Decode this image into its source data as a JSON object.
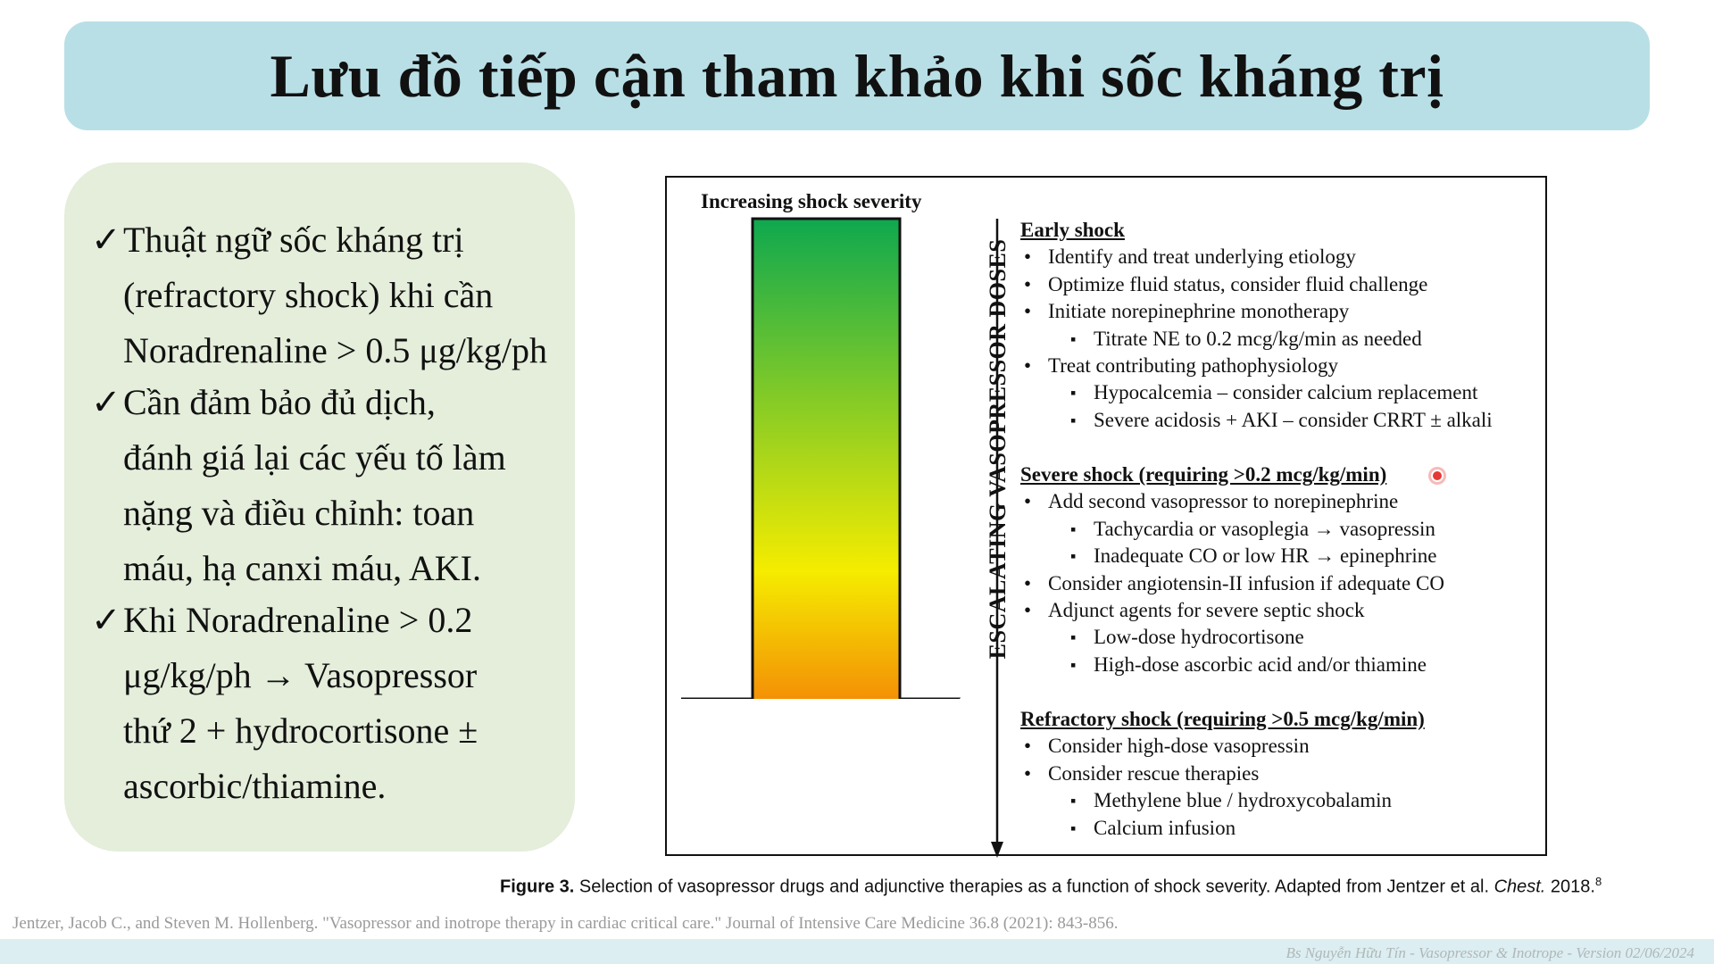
{
  "title": "Lưu đồ tiếp cận tham khảo khi sốc kháng trị",
  "left_panel": {
    "check_glyph": "✓",
    "bullets": [
      {
        "lines": [
          "Thuật ngữ sốc kháng trị",
          "(refractory shock) khi cần",
          "Noradrenaline > 0.5 μg/kg/ph"
        ]
      },
      {
        "lines": [
          "Cần đảm bảo đủ dịch,",
          "đánh giá lại các yếu tố làm",
          "nặng và điều chỉnh: toan",
          "máu, hạ canxi máu, AKI."
        ]
      },
      {
        "lines": [
          " Khi Noradrenaline > 0.2",
          "μg/kg/ph → Vasopressor",
          "thứ 2 + hydrocortisone ±",
          "ascorbic/thiamine."
        ]
      }
    ]
  },
  "figure": {
    "severity_label": "Increasing shock severity",
    "axis_label": "ESCALATING VASOPRESSOR DOSES",
    "gradient_colors": [
      "#0ea84f",
      "#f5ec00",
      "#f21e0d"
    ],
    "bullet_l1": "•",
    "bullet_l2": "▪",
    "sections": [
      {
        "heading": "Early shock",
        "items": [
          {
            "level": 1,
            "text": "Identify and treat underlying etiology"
          },
          {
            "level": 1,
            "text": "Optimize fluid status, consider fluid challenge"
          },
          {
            "level": 1,
            "text": "Initiate norepinephrine monotherapy"
          },
          {
            "level": 2,
            "text": "Titrate NE to 0.2 mcg/kg/min as needed"
          },
          {
            "level": 1,
            "text": "Treat contributing pathophysiology"
          },
          {
            "level": 2,
            "text": "Hypocalcemia – consider calcium replacement"
          },
          {
            "level": 2,
            "text": "Severe acidosis + AKI – consider CRRT ± alkali"
          }
        ]
      },
      {
        "heading": "Severe shock (requiring >0.2 mcg/kg/min)",
        "items": [
          {
            "level": 1,
            "text": "Add second vasopressor to norepinephrine"
          },
          {
            "level": 2,
            "text": "Tachycardia or vasoplegia → vasopressin"
          },
          {
            "level": 2,
            "text": "Inadequate CO or low HR → epinephrine"
          },
          {
            "level": 1,
            "text": "Consider angiotensin-II infusion if adequate CO"
          },
          {
            "level": 1,
            "text": "Adjunct agents for severe septic shock"
          },
          {
            "level": 2,
            "text": "Low-dose hydrocortisone"
          },
          {
            "level": 2,
            "text": "High-dose ascorbic acid and/or thiamine"
          }
        ]
      },
      {
        "heading": "Refractory shock (requiring >0.5 mcg/kg/min)",
        "items": [
          {
            "level": 1,
            "text": "Consider high-dose vasopressin"
          },
          {
            "level": 1,
            "text": "Consider rescue therapies"
          },
          {
            "level": 2,
            "text": "Methylene blue / hydroxycobalamin"
          },
          {
            "level": 2,
            "text": "Calcium infusion"
          }
        ]
      }
    ],
    "caption": {
      "label": "Figure 3.",
      "text": " Selection of vasopressor drugs and adjunctive therapies as a function of shock severity. Adapted from Jentzer et al. ",
      "journal": "Chest.",
      "year": " 2018.",
      "ref_number": "8"
    }
  },
  "reference": "Jentzer, Jacob C., and Steven M. Hollenberg. \"Vasopressor and inotrope therapy in cardiac critical care.\" Journal of Intensive Care Medicine 36.8 (2021): 843-856.",
  "footer": "Bs Nguyễn Hữu Tín - Vasopressor & Inotrope - Version 02/06/2024"
}
